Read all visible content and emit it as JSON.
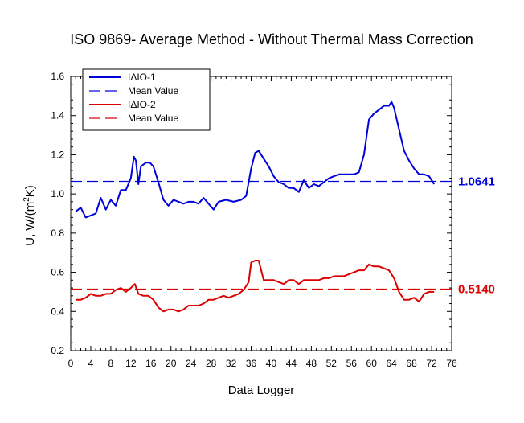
{
  "chart_data": {
    "type": "line",
    "title": "ISO 9869- Average Method - Without Thermal Mass Correction",
    "xlabel": "Data Logger",
    "ylabel_main": "U, W/(m",
    "ylabel_sup": "2",
    "ylabel_tail": "K)",
    "xlim": [
      0,
      76
    ],
    "ylim": [
      0.2,
      1.6
    ],
    "xticks": [
      0,
      4,
      8,
      12,
      16,
      20,
      24,
      28,
      32,
      36,
      40,
      44,
      48,
      52,
      56,
      60,
      64,
      68,
      72,
      76
    ],
    "yticks": [
      0.2,
      0.4,
      0.6,
      0.8,
      1.0,
      1.2,
      1.4,
      1.6
    ],
    "xtick_labels": [
      "0",
      "4",
      "8",
      "12",
      "16",
      "20",
      "24",
      "28",
      "32",
      "36",
      "40",
      "44",
      "48",
      "52",
      "56",
      "60",
      "64",
      "68",
      "72",
      "76"
    ],
    "ytick_labels": [
      "0.2",
      "0.4",
      "0.6",
      "0.8",
      "1.0",
      "1.2",
      "1.4",
      "1.6"
    ],
    "legend_position": "top-left",
    "grid": false,
    "series": [
      {
        "name": "IΔIO-1",
        "color": "#0000dd",
        "style": "solid",
        "x": [
          1,
          2,
          3,
          4,
          5,
          5.5,
          6,
          7,
          8,
          9,
          10,
          11,
          12,
          12.6,
          13,
          13.5,
          14,
          15,
          15.8,
          16.5,
          17.5,
          18.5,
          19.5,
          20.5,
          21.5,
          22.5,
          23.5,
          24.5,
          25.5,
          26.5,
          27.5,
          28.5,
          29.5,
          31,
          32.5,
          34,
          35,
          36,
          36.8,
          37.5,
          38.5,
          39.5,
          40.5,
          41.5,
          42.5,
          43.5,
          44.5,
          45.5,
          46.5,
          47.5,
          48.5,
          49.5,
          50.5,
          51.5,
          52.5,
          53.5,
          55,
          56.5,
          57.5,
          58.5,
          59.5,
          60.5,
          61.5,
          62.5,
          63.5,
          64,
          64.5,
          65.5,
          66.5,
          67.5,
          68.5,
          69.5,
          70.5,
          71.5,
          72,
          72.5
        ],
        "y": [
          0.91,
          0.93,
          0.88,
          0.89,
          0.9,
          0.94,
          0.98,
          0.92,
          0.97,
          0.94,
          1.02,
          1.02,
          1.08,
          1.19,
          1.17,
          1.05,
          1.14,
          1.16,
          1.16,
          1.14,
          1.06,
          0.97,
          0.94,
          0.97,
          0.96,
          0.95,
          0.96,
          0.96,
          0.95,
          0.98,
          0.95,
          0.92,
          0.96,
          0.97,
          0.96,
          0.97,
          0.99,
          1.13,
          1.21,
          1.22,
          1.18,
          1.14,
          1.09,
          1.06,
          1.05,
          1.03,
          1.03,
          1.01,
          1.07,
          1.03,
          1.05,
          1.04,
          1.06,
          1.08,
          1.09,
          1.1,
          1.1,
          1.1,
          1.11,
          1.2,
          1.38,
          1.41,
          1.43,
          1.45,
          1.45,
          1.47,
          1.44,
          1.33,
          1.22,
          1.17,
          1.13,
          1.1,
          1.1,
          1.09,
          1.07,
          1.05
        ]
      },
      {
        "name": "IΔIO-2",
        "color": "#dd0000",
        "style": "solid",
        "x": [
          1,
          2,
          3,
          4,
          5,
          6,
          7,
          8,
          9,
          10,
          11,
          12,
          12.8,
          13.5,
          14.5,
          15.5,
          16.5,
          17.5,
          18.5,
          19.5,
          20.5,
          21.5,
          22.5,
          23.5,
          24.5,
          25.5,
          26.5,
          27.5,
          28.5,
          29.5,
          30.5,
          31.5,
          32.5,
          33.5,
          34.5,
          35.5,
          36,
          36.8,
          37.5,
          38.5,
          39.5,
          40.5,
          41.5,
          42.5,
          43.5,
          44.5,
          45.5,
          46.5,
          47.5,
          48.5,
          49.5,
          50.5,
          51.5,
          52.5,
          53.5,
          54.5,
          55.5,
          56.5,
          57.5,
          58.5,
          59.5,
          60.5,
          61.5,
          62.5,
          63.5,
          64.5,
          65.5,
          66.5,
          67.5,
          68.5,
          69.5,
          70.5,
          71.5,
          72.5
        ],
        "y": [
          0.46,
          0.46,
          0.47,
          0.49,
          0.48,
          0.48,
          0.49,
          0.49,
          0.51,
          0.52,
          0.5,
          0.52,
          0.54,
          0.49,
          0.48,
          0.48,
          0.46,
          0.42,
          0.4,
          0.41,
          0.41,
          0.4,
          0.41,
          0.43,
          0.43,
          0.43,
          0.44,
          0.46,
          0.46,
          0.47,
          0.48,
          0.47,
          0.48,
          0.49,
          0.51,
          0.55,
          0.65,
          0.66,
          0.66,
          0.56,
          0.56,
          0.56,
          0.55,
          0.54,
          0.56,
          0.56,
          0.54,
          0.56,
          0.56,
          0.56,
          0.56,
          0.57,
          0.57,
          0.58,
          0.58,
          0.58,
          0.59,
          0.6,
          0.61,
          0.61,
          0.64,
          0.63,
          0.63,
          0.62,
          0.61,
          0.57,
          0.5,
          0.46,
          0.46,
          0.47,
          0.45,
          0.49,
          0.5,
          0.5
        ]
      },
      {
        "name": "Mean Value",
        "color": "#0000dd",
        "style": "dashed",
        "x": [
          0,
          76
        ],
        "y": [
          1.0641,
          1.0641
        ]
      },
      {
        "name": "Mean Value",
        "color": "#dd0000",
        "style": "dashed",
        "x": [
          0,
          76
        ],
        "y": [
          0.514,
          0.514
        ]
      }
    ],
    "mean_labels": [
      {
        "text": "1.0641",
        "value": 1.0641,
        "color": "#0000dd"
      },
      {
        "text": "0.5140",
        "value": 0.514,
        "color": "#dd0000"
      }
    ]
  }
}
